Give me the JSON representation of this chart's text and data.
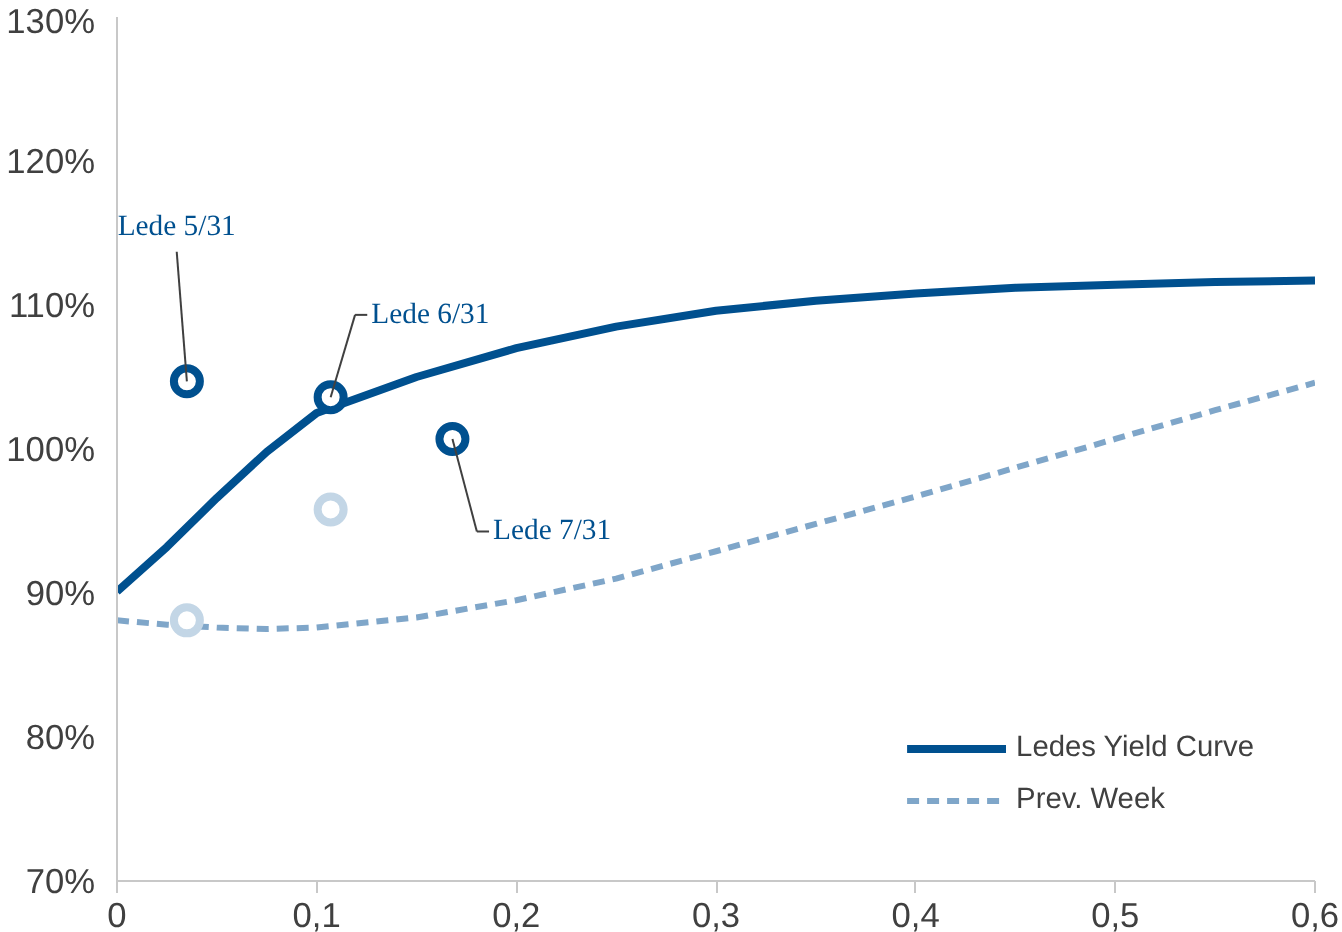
{
  "chart_data": {
    "type": "line",
    "x": [
      0,
      0.025,
      0.05,
      0.075,
      0.1,
      0.15,
      0.2,
      0.25,
      0.3,
      0.35,
      0.4,
      0.45,
      0.5,
      0.55,
      0.6
    ],
    "series": [
      {
        "name": "Ledes Yield Curve",
        "color": "#00508f",
        "line_style": "solid",
        "values": [
          90.1,
          93.2,
          96.6,
          99.8,
          102.5,
          105,
          107,
          108.5,
          109.6,
          110.3,
          110.8,
          111.2,
          111.4,
          111.6,
          111.7
        ]
      },
      {
        "name": "Prev. Week",
        "color": "#7fa6c9",
        "line_style": "dashed",
        "values": [
          88.1,
          87.8,
          87.6,
          87.5,
          87.6,
          88.3,
          89.5,
          91,
          92.9,
          94.8,
          96.7,
          98.7,
          100.7,
          102.7,
          104.6
        ]
      },
      {
        "type": "scatter",
        "marker": "circle",
        "color": "#00508f",
        "x": [
          0.035,
          0.107,
          0.168
        ],
        "values": [
          104.7,
          103.6,
          100.7
        ]
      },
      {
        "type": "scatter",
        "marker": "circle",
        "color": "#c3d6e6",
        "x": [
          0.035,
          0.107
        ],
        "values": [
          88.1,
          95.8
        ]
      }
    ],
    "annotations": [
      {
        "text": "Lede 5/31",
        "x": 0.035,
        "y": 104.7
      },
      {
        "text": "Lede 6/31",
        "x": 0.107,
        "y": 103.6
      },
      {
        "text": "Lede 7/31",
        "x": 0.168,
        "y": 100.7
      }
    ],
    "xlim": [
      0,
      0.6
    ],
    "xticks": [
      0,
      {
        "value": 0.1,
        "label": "0,1"
      },
      {
        "value": 0.2,
        "label": "0,2"
      },
      {
        "value": 0.3,
        "label": "0,3"
      },
      {
        "value": 0.4,
        "label": "0,4"
      },
      {
        "value": 0.5,
        "label": "0,5"
      },
      {
        "value": 0.6,
        "label": "0,6"
      }
    ],
    "ylim": [
      70,
      130
    ],
    "yticks": [
      {
        "value": 70,
        "label": "70%"
      },
      {
        "value": 80,
        "label": "80%"
      },
      {
        "value": 90,
        "label": "90%"
      },
      {
        "value": 100,
        "label": "100%"
      },
      {
        "value": 110,
        "label": "110%"
      },
      {
        "value": 120,
        "label": "120%"
      },
      {
        "value": 130,
        "label": "130%"
      }
    ],
    "grid": false,
    "legend": "bottom right"
  }
}
